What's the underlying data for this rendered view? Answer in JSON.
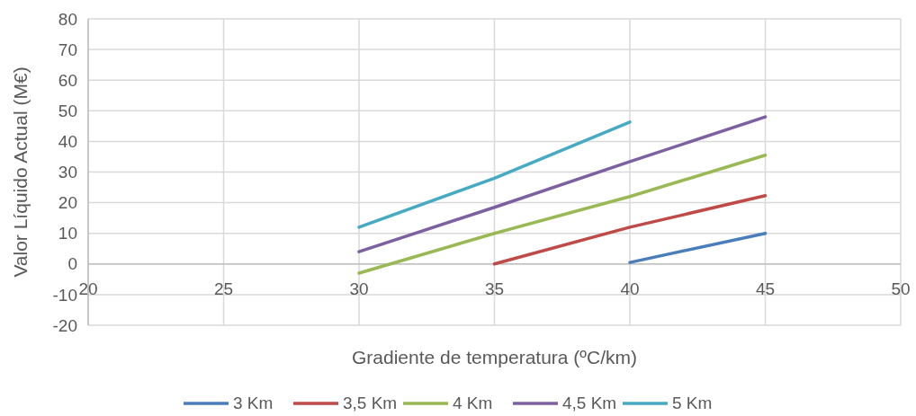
{
  "chart_data": {
    "type": "line",
    "xlabel": "Gradiente de temperatura (ºC/km)",
    "ylabel": "Valor Líquido Actual (M€)",
    "xlim": [
      20,
      50
    ],
    "xticks": [
      20,
      25,
      30,
      35,
      40,
      45,
      50
    ],
    "ylim": [
      -20,
      80
    ],
    "yticks": [
      -20,
      -10,
      0,
      10,
      20,
      30,
      40,
      50,
      60,
      70,
      80
    ],
    "grid": true,
    "legend": "bottom",
    "marker": "none",
    "line_style": "solid",
    "series": [
      {
        "name": "3 Km",
        "color": "#4a7ebb",
        "x": [
          40,
          45
        ],
        "values": [
          0.5,
          10
        ]
      },
      {
        "name": "3,5 Km",
        "color": "#be4b48",
        "x": [
          35,
          40,
          45
        ],
        "values": [
          0,
          12,
          22.3
        ]
      },
      {
        "name": "4 Km",
        "color": "#98b954",
        "x": [
          30,
          35,
          40,
          45
        ],
        "values": [
          -3,
          10,
          22,
          35.5
        ]
      },
      {
        "name": "4,5 Km",
        "color": "#7d60a0",
        "x": [
          30,
          35,
          40,
          45
        ],
        "values": [
          4,
          18.5,
          33.4,
          48
        ]
      },
      {
        "name": "5 Km",
        "color": "#46aac5",
        "x": [
          30,
          35,
          40
        ],
        "values": [
          12,
          28,
          46.3
        ]
      }
    ]
  }
}
